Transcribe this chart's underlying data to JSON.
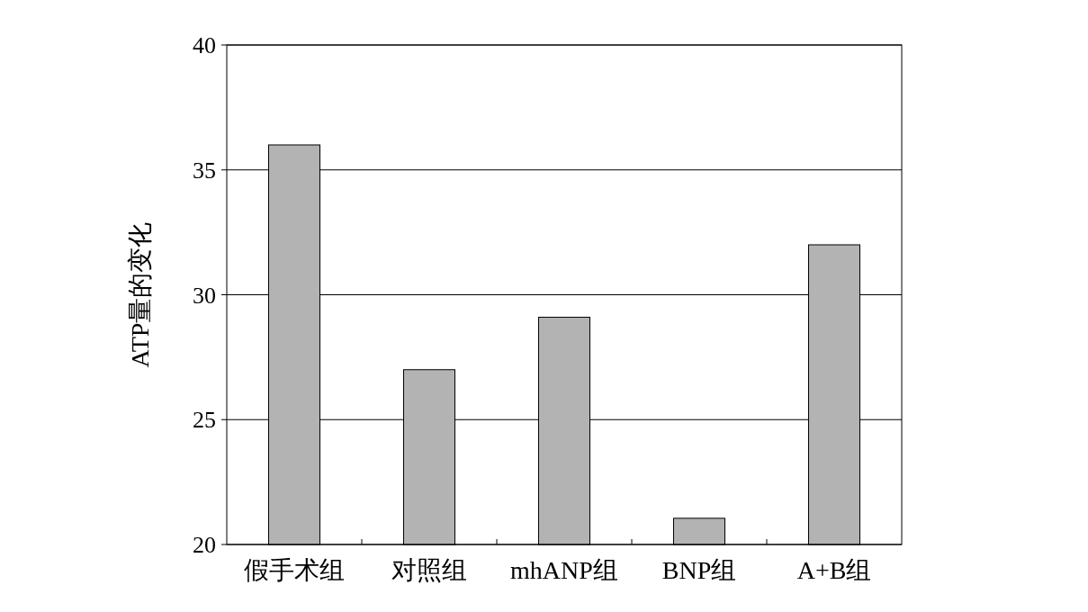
{
  "chart_data": {
    "type": "bar",
    "ylabel": "ATP量的变化",
    "categories": [
      "假手术组",
      "对照组",
      "mhANP组",
      "BNP组",
      "A+B组"
    ],
    "values": [
      36.0,
      27.0,
      29.1,
      21.05,
      32.0
    ],
    "color": "#b3b3b3",
    "ylim": [
      20,
      40
    ],
    "yticks": [
      20,
      25,
      30,
      35,
      40
    ],
    "grid": "y"
  }
}
